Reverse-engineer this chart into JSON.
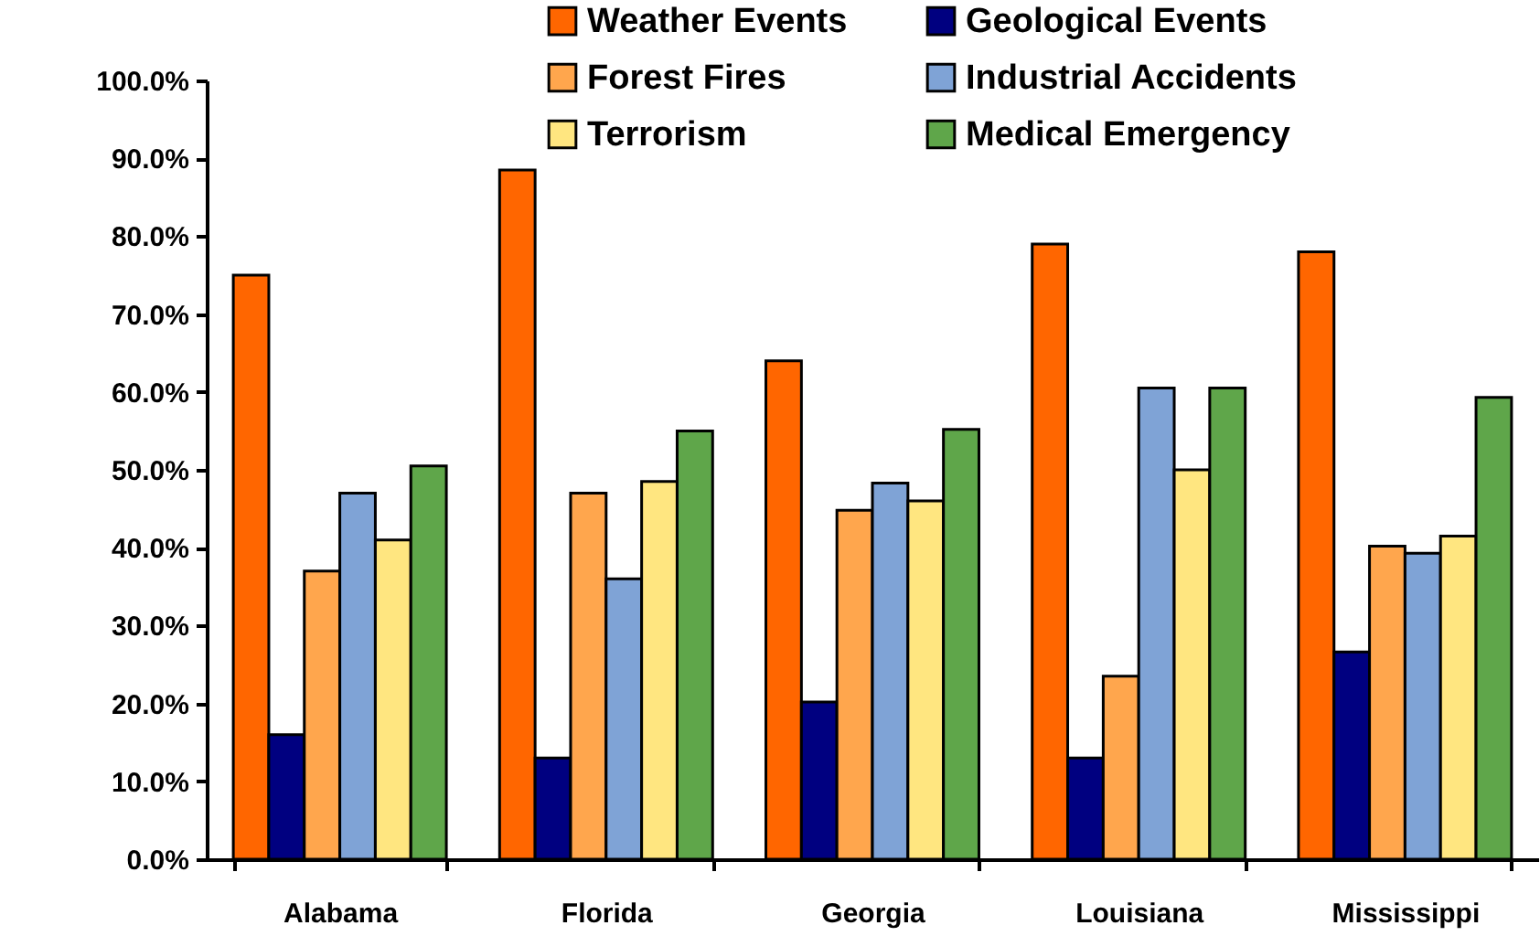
{
  "chart_data": {
    "type": "bar",
    "categories": [
      "Alabama",
      "Florida",
      "Georgia",
      "Louisiana",
      "Mississippi"
    ],
    "series": [
      {
        "name": "Weather Events",
        "color": "#ff6600",
        "values": [
          75,
          88.5,
          64,
          79,
          78
        ]
      },
      {
        "name": "Geological Events",
        "color": "#000080",
        "values": [
          16,
          13,
          20.2,
          13,
          26.6
        ]
      },
      {
        "name": "Forest Fires",
        "color": "#ffa64d",
        "values": [
          37,
          47,
          44.8,
          23.5,
          40.2
        ]
      },
      {
        "name": "Industrial Accidents",
        "color": "#7fa3d6",
        "values": [
          47,
          36,
          48.3,
          60.5,
          39.3
        ]
      },
      {
        "name": "Terrorism",
        "color": "#ffe680",
        "values": [
          41,
          48.5,
          46,
          50,
          41.5
        ]
      },
      {
        "name": "Medical Emergency",
        "color": "#5fa64a",
        "values": [
          50.5,
          55,
          55.2,
          60.5,
          59.3
        ]
      }
    ],
    "ylim": [
      0,
      100
    ],
    "yticks": [
      {
        "value": 0,
        "label": "0.0%"
      },
      {
        "value": 10,
        "label": "10.0%"
      },
      {
        "value": 20,
        "label": "20.0%"
      },
      {
        "value": 30,
        "label": "30.0%"
      },
      {
        "value": 40,
        "label": "40.0%"
      },
      {
        "value": 50,
        "label": "50.0%"
      },
      {
        "value": 60,
        "label": "60.0%"
      },
      {
        "value": 70,
        "label": "70.0%"
      },
      {
        "value": 80,
        "label": "80.0%"
      },
      {
        "value": 90,
        "label": "90.0%"
      },
      {
        "value": 100,
        "label": "100.0%"
      }
    ],
    "legend": "top right",
    "grid": false
  }
}
